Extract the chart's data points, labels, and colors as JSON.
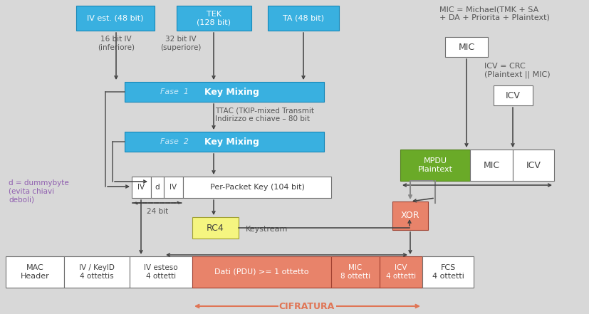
{
  "bg_color": "#d8d8d8",
  "blue_color": "#39b0e0",
  "orange_color": "#e8836a",
  "green_color": "#6aaa28",
  "yellow_color": "#f5f580",
  "white_color": "#ffffff",
  "text_dark": "#555555",
  "arrow_color": "#404040",
  "purple_color": "#9060b0",
  "cifratura_color": "#e07555",
  "fase_text_color": "#c8e8f8",
  "mic_text": "MIC = Michael(TMK + SA\n+ DA + Priorita + Plaintext)",
  "icv_text": "ICV = CRC\n(Plaintext || MIC)",
  "ttac_text": "TTAC (TKIP-mixed Transmit\nIndirizzo e chiave – 80 bit",
  "cifratura_label": "CIFRATURA",
  "d_label": "d = dummybyte\n(evita chiavi\ndeboli)",
  "bit16_label": "16 bit IV\n(inferiore)",
  "bit32_label": "32 bit IV\n(superiore)",
  "bit24_label": "24 bit",
  "keystream_label": "Keystream"
}
